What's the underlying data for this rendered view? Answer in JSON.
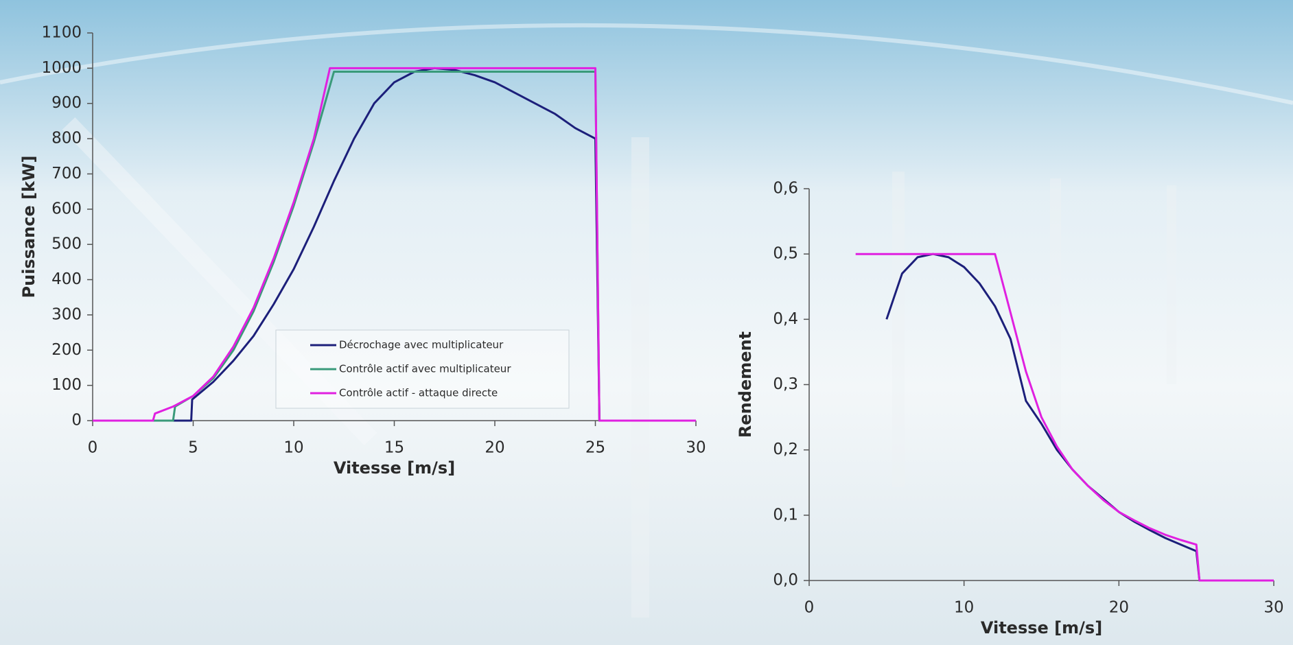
{
  "chart_data": [
    {
      "type": "line",
      "xlabel": "Vitesse [m/s]",
      "ylabel": "Puissance [kW]",
      "xlim": [
        0,
        30
      ],
      "xticks": [
        0,
        5,
        10,
        15,
        20,
        25,
        30
      ],
      "ylim": [
        0,
        1100
      ],
      "yticks": [
        0,
        100,
        200,
        300,
        400,
        500,
        600,
        700,
        800,
        900,
        1000,
        1100
      ],
      "legend": "center",
      "series": [
        {
          "name": "Décrochage avec multiplicateur",
          "color": "#1c1f7a",
          "x": [
            0,
            4.9,
            4.95,
            6,
            7,
            8,
            9,
            10,
            11,
            12,
            13,
            14,
            15,
            16,
            17,
            18,
            19,
            20,
            21,
            22,
            23,
            24,
            25,
            25.2,
            30
          ],
          "values": [
            0,
            0,
            60,
            110,
            170,
            240,
            330,
            430,
            550,
            680,
            800,
            900,
            960,
            990,
            1000,
            995,
            980,
            960,
            930,
            900,
            870,
            830,
            800,
            0,
            0
          ]
        },
        {
          "name": "Contrôle actif avec multiplicateur",
          "color": "#3a9a7a",
          "x": [
            0,
            4,
            4.1,
            5,
            6,
            7,
            8,
            9,
            10,
            11,
            12,
            25,
            25.2,
            30
          ],
          "values": [
            0,
            0,
            40,
            70,
            120,
            200,
            310,
            450,
            610,
            790,
            990,
            990,
            0,
            0
          ]
        },
        {
          "name": "Contrôle actif - attaque directe",
          "color": "#e020e0",
          "x": [
            0,
            3,
            3.1,
            4,
            5,
            6,
            7,
            8,
            9,
            10,
            11,
            11.8,
            25,
            25.2,
            30
          ],
          "values": [
            0,
            0,
            20,
            40,
            70,
            125,
            210,
            320,
            460,
            620,
            800,
            1000,
            1000,
            0,
            0
          ]
        }
      ]
    },
    {
      "type": "line",
      "xlabel": "Vitesse [m/s]",
      "ylabel": "Rendement",
      "xlim": [
        0,
        30
      ],
      "xticks": [
        0,
        10,
        20,
        30
      ],
      "ylim": [
        0,
        0.6
      ],
      "yticks": [
        {
          "value": 0,
          "label": "0,0"
        },
        {
          "value": 0.1,
          "label": "0,1"
        },
        {
          "value": 0.2,
          "label": "0,2"
        },
        {
          "value": 0.3,
          "label": "0,3"
        },
        {
          "value": 0.4,
          "label": "0,4"
        },
        {
          "value": 0.5,
          "label": "0,5"
        },
        {
          "value": 0.6,
          "label": "0,6"
        }
      ],
      "series": [
        {
          "color": "#1c1f7a",
          "x": [
            5,
            6,
            7,
            8,
            9,
            10,
            11,
            12,
            13,
            14,
            15,
            16,
            17,
            18,
            19,
            20,
            21,
            22,
            23,
            24,
            25,
            25.2,
            30
          ],
          "values": [
            0.4,
            0.47,
            0.495,
            0.5,
            0.495,
            0.48,
            0.455,
            0.42,
            0.37,
            0.275,
            0.24,
            0.2,
            0.17,
            0.145,
            0.125,
            0.105,
            0.09,
            0.077,
            0.065,
            0.055,
            0.045,
            0,
            0
          ]
        },
        {
          "color": "#e020e0",
          "x": [
            3,
            12,
            13,
            14,
            15,
            16,
            17,
            18,
            19,
            20,
            21,
            22,
            23,
            24,
            25,
            25.2,
            30
          ],
          "values": [
            0.5,
            0.5,
            0.41,
            0.32,
            0.25,
            0.205,
            0.17,
            0.145,
            0.123,
            0.105,
            0.092,
            0.08,
            0.07,
            0.062,
            0.055,
            0,
            0
          ]
        }
      ]
    }
  ]
}
